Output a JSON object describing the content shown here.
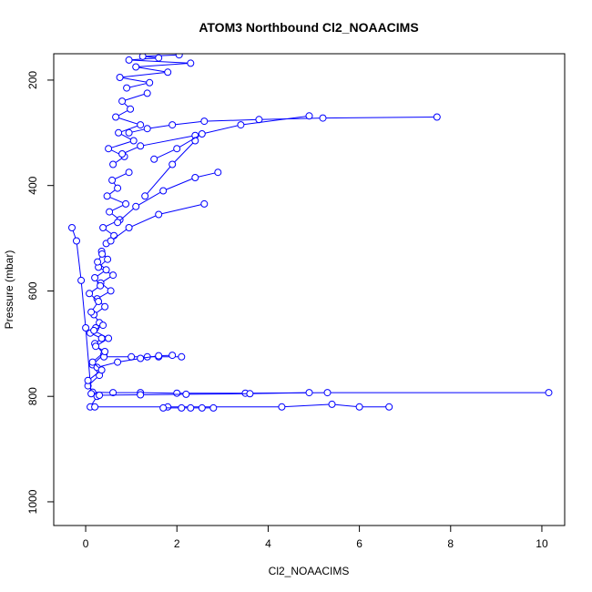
{
  "chart_data": {
    "type": "line",
    "title": "ATOM3 Northbound Cl2_NOAACIMS",
    "xlabel": "Cl2_NOAACIMS",
    "ylabel": "Pressure (mbar)",
    "xlim": [
      -0.7,
      10.5
    ],
    "ylim": [
      1045,
      150
    ],
    "y_reversed": true,
    "xticks": [
      0,
      2,
      4,
      6,
      8,
      10
    ],
    "yticks": [
      200,
      400,
      600,
      800,
      1000
    ],
    "grid": false,
    "color": "#0000ff",
    "markers": "open-circle",
    "series": [
      {
        "x": [
          0.1,
          0.25,
          0.05,
          0.3,
          0.15,
          0.4,
          0.2,
          0.35,
          0.1,
          0.22
        ],
        "y": [
          820,
          800,
          780,
          760,
          740,
          720,
          700,
          690,
          680,
          670
        ]
      },
      {
        "x": [
          0.3,
          0.18,
          0.42,
          0.25,
          0.55,
          0.33,
          0.6,
          0.28,
          0.48,
          0.35
        ],
        "y": [
          660,
          645,
          630,
          615,
          600,
          585,
          570,
          555,
          540,
          525
        ]
      },
      {
        "x": [
          0.45,
          0.62,
          0.38,
          0.75,
          0.52,
          0.88,
          0.47,
          0.7,
          0.58,
          0.95
        ],
        "y": [
          510,
          495,
          480,
          465,
          450,
          435,
          420,
          405,
          390,
          375
        ]
      },
      {
        "x": [
          0.6,
          0.85,
          0.5,
          1.05,
          0.72,
          1.2,
          0.66,
          0.98,
          0.8,
          1.35
        ],
        "y": [
          360,
          345,
          330,
          315,
          300,
          285,
          270,
          255,
          240,
          225
        ]
      },
      {
        "x": [
          0.9,
          1.4,
          0.75,
          1.8,
          1.1,
          2.3,
          0.95,
          1.6,
          1.25,
          2.05
        ],
        "y": [
          215,
          205,
          195,
          185,
          175,
          168,
          162,
          158,
          155,
          152
        ]
      },
      {
        "x": [
          0.95,
          1.35,
          1.9,
          2.6,
          3.8,
          5.2,
          7.7
        ],
        "y": [
          300,
          292,
          285,
          278,
          275,
          272,
          270
        ]
      },
      {
        "x": [
          0.8,
          1.2,
          2.4,
          3.4,
          4.9
        ],
        "y": [
          340,
          325,
          305,
          285,
          268
        ]
      },
      {
        "x": [
          0.7,
          1.1,
          1.7,
          2.4,
          2.9
        ],
        "y": [
          470,
          440,
          410,
          385,
          375
        ]
      },
      {
        "x": [
          0.55,
          0.95,
          1.6,
          2.6
        ],
        "y": [
          505,
          480,
          455,
          435
        ]
      },
      {
        "x": [
          1.3,
          1.9,
          2.4
        ],
        "y": [
          420,
          360,
          315
        ]
      },
      {
        "x": [
          1.5,
          2.0,
          2.55
        ],
        "y": [
          350,
          330,
          302
        ]
      },
      {
        "x": [
          0.15,
          0.6,
          1.2,
          2.0,
          3.5,
          5.3,
          10.15
        ],
        "y": [
          792,
          793,
          793,
          794,
          794,
          793,
          793
        ]
      },
      {
        "x": [
          0.3,
          1.2,
          2.2,
          3.6,
          4.9
        ],
        "y": [
          798,
          797,
          796,
          795,
          793
        ]
      },
      {
        "x": [
          0.2,
          1.8,
          4.3,
          5.4,
          6.0,
          6.65
        ],
        "y": [
          820,
          820,
          820,
          815,
          820,
          820
        ]
      },
      {
        "x": [
          1.7,
          2.1,
          2.3,
          2.55,
          2.8
        ],
        "y": [
          822,
          822,
          822,
          822,
          822
        ]
      },
      {
        "x": [
          0.4,
          1.0,
          1.35,
          1.6,
          2.1
        ],
        "y": [
          725,
          725,
          725,
          725,
          725
        ]
      },
      {
        "x": [
          0.25,
          0.7,
          1.2,
          1.6,
          1.9
        ],
        "y": [
          745,
          735,
          728,
          723,
          722
        ]
      },
      {
        "x": [
          -0.3,
          -0.2,
          -0.1,
          0.0,
          0.12
        ],
        "y": [
          480,
          505,
          580,
          670,
          795
        ]
      },
      {
        "x": [
          0.05,
          0.35,
          0.15,
          0.42,
          0.22,
          0.5,
          0.18,
          0.38
        ],
        "y": [
          770,
          750,
          735,
          715,
          705,
          690,
          675,
          665
        ]
      },
      {
        "x": [
          0.12,
          0.28,
          0.08,
          0.32,
          0.2,
          0.45,
          0.26,
          0.36
        ],
        "y": [
          640,
          620,
          605,
          590,
          575,
          560,
          545,
          530
        ]
      }
    ]
  }
}
